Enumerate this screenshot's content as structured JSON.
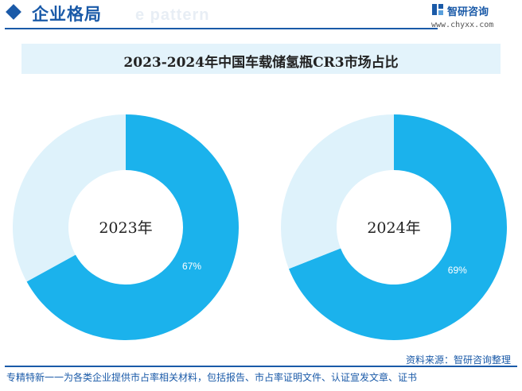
{
  "header": {
    "title": "企业格局",
    "ghost_text": "e pattern"
  },
  "logo": {
    "name": "智研咨询",
    "url": "www.chyxx.com"
  },
  "chart_title": "2023-2024年中国车载储氢瓶CR3市场占比",
  "colors": {
    "primary": "#1bb2ec",
    "secondary": "#def2fb",
    "brand": "#1a5aa8"
  },
  "chart_data": [
    {
      "type": "pie",
      "center_label": "2023年",
      "slices": [
        {
          "value": 67,
          "label": "67%",
          "color": "#1bb2ec"
        },
        {
          "value": 33,
          "label": "",
          "color": "#def2fb"
        }
      ]
    },
    {
      "type": "pie",
      "center_label": "2024年",
      "slices": [
        {
          "value": 69,
          "label": "69%",
          "color": "#1bb2ec"
        },
        {
          "value": 31,
          "label": "",
          "color": "#def2fb"
        }
      ]
    }
  ],
  "source": "资料来源：智研咨询整理",
  "footer": "专精特新一一为各类企业提供市占率相关材料，包括报告、市占率证明文件、认证宣发文章、证书"
}
